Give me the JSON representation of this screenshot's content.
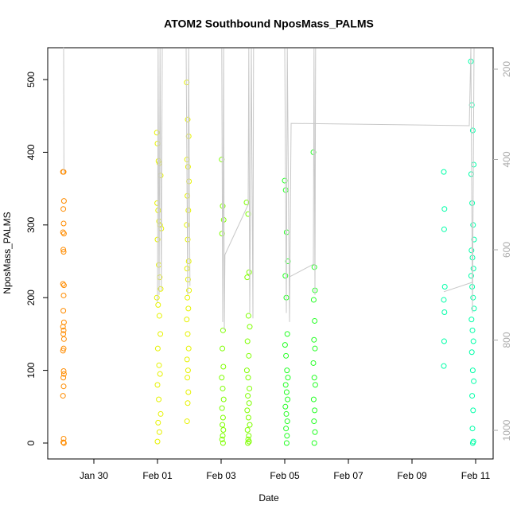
{
  "chart_data": {
    "type": "scatter",
    "title": "ATOM2 Southbound NposMass_PALMS",
    "x_label": "Date",
    "y_label": "NposMass_PALMS",
    "xlim": [
      28.55,
      42.55
    ],
    "xticks": [
      {
        "value": 30,
        "label": "Jan 30"
      },
      {
        "value": 32,
        "label": "Feb 01"
      },
      {
        "value": 34,
        "label": "Feb 03"
      },
      {
        "value": 36,
        "label": "Feb 05"
      },
      {
        "value": 38,
        "label": "Feb 07"
      },
      {
        "value": 40,
        "label": "Feb 09"
      },
      {
        "value": 42,
        "label": "Feb 11"
      }
    ],
    "ylim": [
      -21.9,
      543.8
    ],
    "yticks": [
      0,
      100,
      200,
      300,
      400,
      500
    ],
    "y2lim": [
      1063.4,
      152.4
    ],
    "y2ticks": [
      200,
      400,
      600,
      800,
      1000
    ],
    "series": [
      {
        "color": "#ff8c00",
        "x": [
          29.03,
          29.05,
          29.06,
          29.04,
          29.05,
          29.03,
          29.06,
          29.04,
          29.05,
          29.03,
          29.06,
          29.05,
          29.04,
          29.06,
          29.03,
          29.05,
          29.04,
          29.06,
          29.05,
          29.03,
          29.05,
          29.06,
          29.04,
          29.05,
          29.03,
          29.05,
          29.04,
          29.06
        ],
        "values": [
          373,
          373,
          333,
          322,
          302,
          290,
          288,
          266,
          263,
          219,
          217,
          203,
          182,
          166,
          160,
          155,
          150,
          143,
          130,
          127,
          99,
          95,
          90,
          78,
          65,
          6,
          1,
          0
        ]
      },
      {
        "color": "#e6f200",
        "x": [
          31.98,
          32.0,
          32.03,
          32.06,
          32.1,
          31.99,
          32.02,
          32.05,
          32.08,
          32.12,
          32.0,
          32.04,
          32.07,
          32.1,
          31.98,
          32.02,
          32.06,
          32.09,
          32.01,
          32.05,
          32.08,
          32.0,
          32.04,
          32.1,
          32.02,
          32.06,
          32.0,
          32.92,
          32.95,
          32.98,
          32.93,
          32.96,
          32.99,
          32.94,
          32.97,
          32.92,
          32.95,
          32.98,
          32.93,
          32.96,
          32.99,
          32.94,
          32.97,
          32.92,
          32.95,
          32.98,
          32.93,
          32.96,
          32.94,
          32.97,
          32.95,
          32.93
        ],
        "values": [
          427,
          412,
          388,
          385,
          368,
          330,
          320,
          305,
          300,
          295,
          280,
          245,
          228,
          212,
          200,
          190,
          175,
          150,
          130,
          107,
          95,
          80,
          60,
          40,
          28,
          15,
          2,
          496,
          445,
          422,
          390,
          380,
          360,
          340,
          320,
          300,
          280,
          250,
          240,
          225,
          210,
          200,
          185,
          170,
          150,
          130,
          115,
          100,
          90,
          70,
          55,
          30
        ]
      },
      {
        "color": "#7fff00",
        "x": [
          34.02,
          34.05,
          34.08,
          34.03,
          34.06,
          34.04,
          34.07,
          34.02,
          34.05,
          34.08,
          34.03,
          34.06,
          34.04,
          34.07,
          34.05,
          34.03,
          34.06,
          34.8,
          34.85,
          34.88,
          34.82,
          34.86,
          34.9,
          34.83,
          34.87,
          34.81,
          34.85,
          34.89,
          34.84,
          34.88,
          34.82,
          34.86,
          34.9,
          34.83,
          34.87,
          34.85,
          34.84,
          34.88
        ],
        "values": [
          390,
          326,
          307,
          288,
          155,
          130,
          105,
          90,
          75,
          60,
          48,
          35,
          25,
          18,
          10,
          5,
          0,
          331,
          315,
          235,
          228,
          175,
          160,
          140,
          120,
          100,
          90,
          75,
          65,
          55,
          45,
          35,
          25,
          18,
          10,
          5,
          0,
          2
        ]
      },
      {
        "color": "#22ff22",
        "x": [
          36.0,
          36.03,
          36.06,
          36.1,
          36.02,
          36.05,
          36.08,
          36.01,
          36.04,
          36.07,
          36.1,
          36.03,
          36.06,
          36.09,
          36.02,
          36.05,
          36.08,
          36.04,
          36.07,
          36.06,
          36.9,
          36.93,
          36.95,
          36.91,
          36.94,
          36.92,
          36.95,
          36.9,
          36.93,
          36.96,
          36.91,
          36.94,
          36.92,
          36.95,
          36.93
        ],
        "values": [
          361,
          348,
          290,
          250,
          230,
          200,
          150,
          135,
          120,
          100,
          90,
          80,
          70,
          60,
          50,
          40,
          30,
          20,
          10,
          0,
          400,
          242,
          210,
          197,
          168,
          142,
          130,
          110,
          90,
          80,
          60,
          45,
          30,
          15,
          0
        ]
      },
      {
        "color": "#00ffa8",
        "x": [
          41.0,
          41.02,
          41.01,
          41.03,
          41.0,
          41.02,
          41.01,
          41.0,
          41.85,
          41.88,
          41.91,
          41.94,
          41.86,
          41.89,
          41.92,
          41.95,
          41.87,
          41.9,
          41.93,
          41.86,
          41.89,
          41.92,
          41.95,
          41.87,
          41.9,
          41.93,
          41.88,
          41.91,
          41.94,
          41.89,
          41.92,
          41.9,
          41.93,
          41.91
        ],
        "values": [
          373,
          322,
          294,
          215,
          197,
          180,
          140,
          106,
          525,
          465,
          430,
          383,
          370,
          330,
          300,
          280,
          265,
          255,
          240,
          230,
          215,
          200,
          185,
          170,
          155,
          140,
          125,
          100,
          85,
          65,
          45,
          20,
          2,
          0
        ]
      },
      {
        "color": "#c8c8c8",
        "axis": "y2",
        "x": [
          29.03,
          29.05,
          29.06,
          null,
          32.0,
          32.02,
          32.05,
          32.08,
          32.12,
          32.15,
          null,
          32.9,
          32.95,
          32.98,
          33.02,
          null,
          34.02,
          34.05,
          34.08,
          34.1,
          34.12,
          34.85,
          34.87,
          34.9,
          34.95,
          35.0,
          35.02,
          null,
          36.0,
          36.05,
          36.08,
          36.15,
          36.2,
          41.8,
          41.85,
          41.9,
          41.95,
          null,
          36.15,
          36.9,
          36.92,
          36.95,
          36.97,
          null,
          41.0,
          41.9
        ],
        "values": [
          153,
          153,
          430,
          null,
          716,
          153,
          700,
          153,
          690,
          153,
          null,
          153,
          700,
          153,
          680,
          null,
          153,
          760,
          153,
          778,
          611,
          500,
          153,
          740,
          153,
          752,
          153,
          null,
          153,
          740,
          153,
          760,
          320,
          325,
          153,
          740,
          153,
          null,
          660,
          632,
          153,
          700,
          153,
          null,
          693,
          672
        ]
      }
    ]
  }
}
